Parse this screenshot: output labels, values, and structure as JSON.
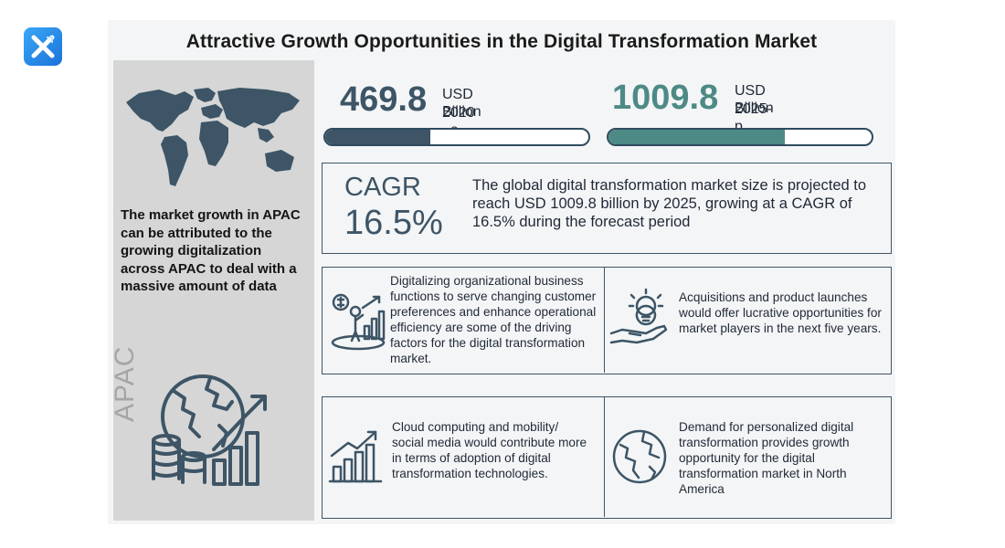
{
  "title": "Attractive Growth Opportunities in the Digital Transformation Market",
  "left_panel": {
    "text": "The market growth in APAC can be attributed to the growing digitalization across APAC to deal with a massive amount of data",
    "region_label": "APAC"
  },
  "stats": [
    {
      "value": "469.8",
      "unit": "USD Billion",
      "year": "2020 –e",
      "progress": 0.4,
      "color": "#3d5566"
    },
    {
      "value": "1009.8",
      "unit": "USD Billion",
      "year": "2025-p",
      "progress": 0.67,
      "color": "#4d8a85"
    }
  ],
  "cagr": {
    "label": "CAGR",
    "value": "16.5%",
    "description": "The global digital transformation market size is projected to reach USD 1009.8 billion by 2025, growing at a CAGR of 16.5% during the forecast period"
  },
  "cells": [
    {
      "icon": "growth-person-icon",
      "text": "Digitalizing organizational business functions to serve changing customer preferences and enhance operational efficiency are some of the driving factors for the digital transformation market."
    },
    {
      "icon": "lightbulb-hand-icon",
      "text": "Acquisitions and product launches would offer lucrative opportunities for market players in the next five years."
    },
    {
      "icon": "bar-growth-icon",
      "text": "Cloud computing and mobility/ social media would contribute more in terms of adoption of digital transformation technologies."
    },
    {
      "icon": "globe-icon",
      "text": "Demand for personalized digital transformation provides growth opportunity for the digital transformation market in North America"
    }
  ]
}
